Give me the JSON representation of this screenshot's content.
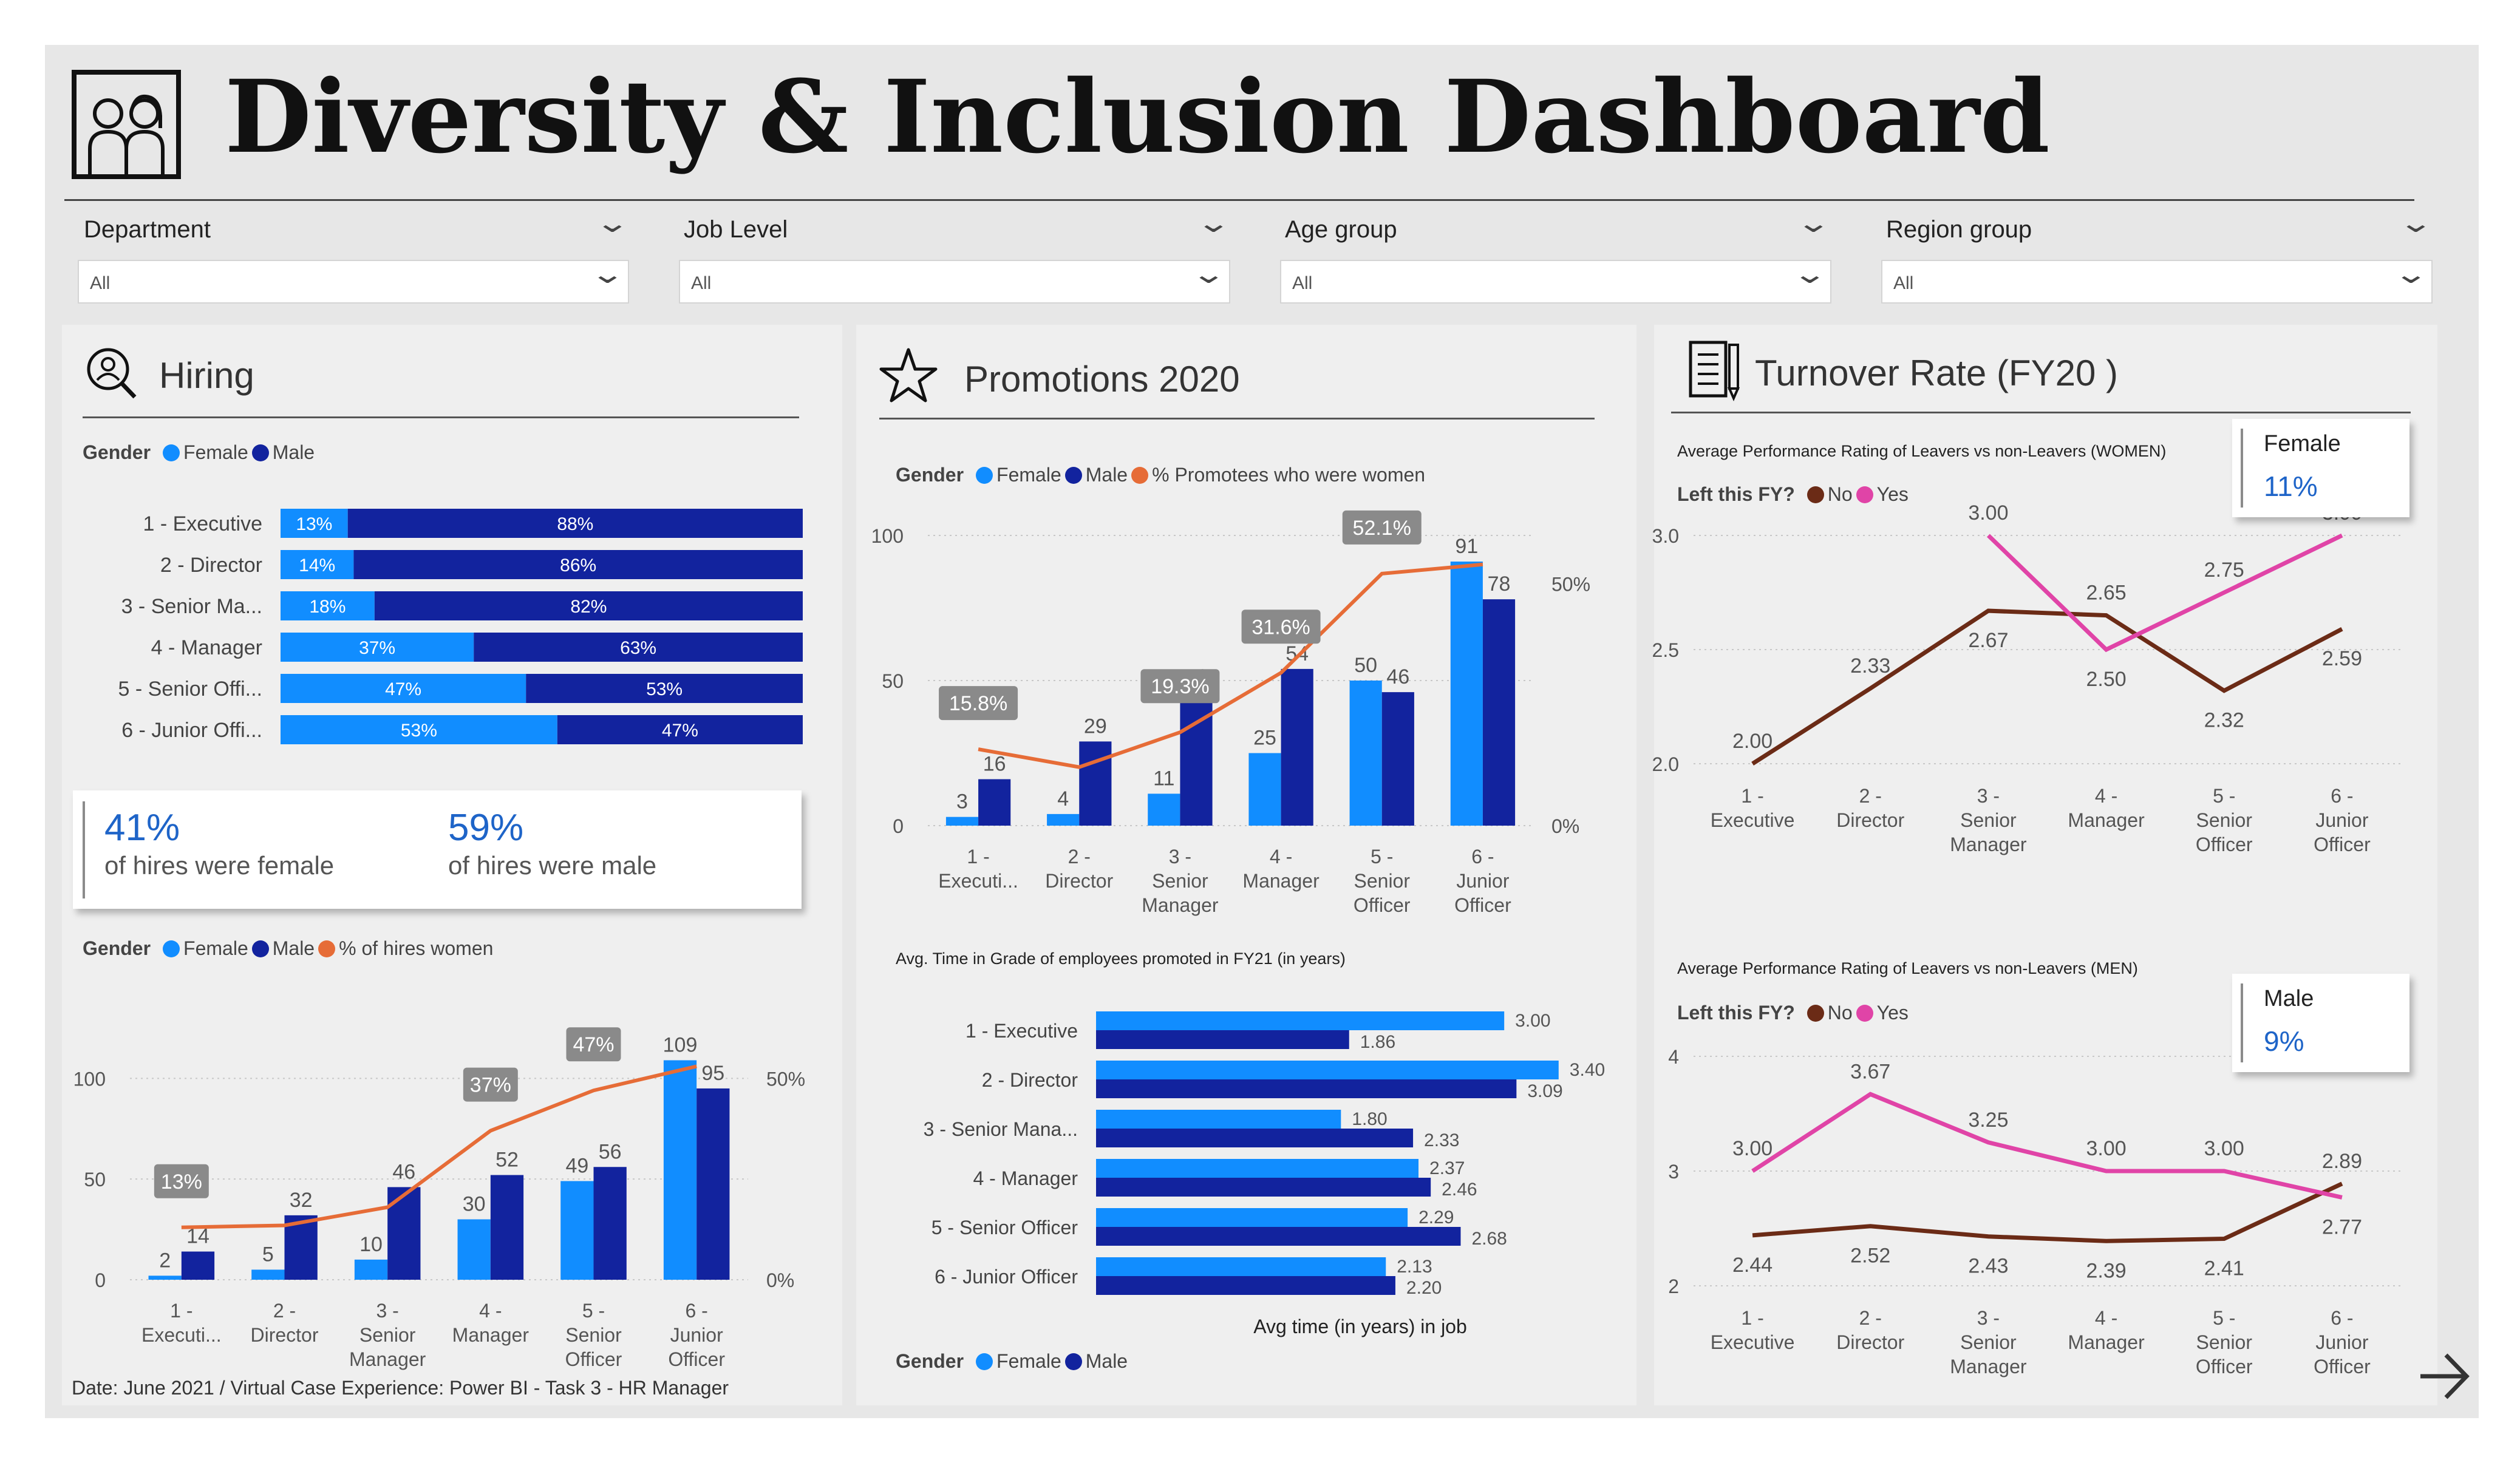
{
  "title": "Diversity & Inclusion Dashboard",
  "slicers": [
    {
      "label": "Department",
      "value": "All"
    },
    {
      "label": "Job Level",
      "value": "All"
    },
    {
      "label": "Age group",
      "value": "All"
    },
    {
      "label": "Region group",
      "value": "All"
    }
  ],
  "colors": {
    "female": "#118dff",
    "male": "#12239e",
    "pct_line": "#e66c37",
    "leavers_no": "#6b2b16",
    "leavers_yes": "#e044a7",
    "card_value": "#1e64c8"
  },
  "hiring": {
    "title": "Hiring",
    "legend1": {
      "label": "Gender",
      "female": "Female",
      "male": "Male"
    },
    "card": {
      "female_value": "41%",
      "female_text": "of hires were female",
      "male_value": "59%",
      "male_text": "of hires were male"
    },
    "legend2": {
      "label": "Gender",
      "female": "Female",
      "male": "Male",
      "line": "% of hires women"
    },
    "footer": "Date: June 2021 / Virtual Case Experience: Power BI - Task 3 - HR Manager"
  },
  "promotions": {
    "title": "Promotions 2020",
    "legend1": {
      "label": "Gender",
      "female": "Female",
      "male": "Male",
      "line": "% Promotees who were women"
    },
    "time_title": "Avg. Time in Grade of employees promoted in FY21 (in years)",
    "time_axis": "Avg time (in years) in job",
    "legend2": {
      "label": "Gender",
      "female": "Female",
      "male": "Male"
    }
  },
  "turnover": {
    "title": "Turnover Rate (FY20 )",
    "women_title": "Average Performance Rating of Leavers vs non-Leavers (WOMEN)",
    "men_title": "Average Performance Rating of Leavers vs non-Leavers (MEN)",
    "legend": {
      "label": "Left this FY?",
      "no": "No",
      "yes": "Yes"
    },
    "female_card": {
      "label": "Female",
      "value": "11%"
    },
    "male_card": {
      "label": "Male",
      "value": "9%"
    }
  },
  "chart_data": [
    {
      "id": "hiring_share",
      "type": "bar",
      "categories": [
        "1 - Executive",
        "2 - Director",
        "3 - Senior Ma...",
        "4 - Manager",
        "5 - Senior Offi...",
        "6 - Junior Offi..."
      ],
      "series": [
        {
          "name": "Female",
          "values": [
            13,
            14,
            18,
            37,
            47,
            53
          ],
          "labels": [
            "13%",
            "14%",
            "18%",
            "37%",
            "47%",
            "53%"
          ]
        },
        {
          "name": "Male",
          "values": [
            88,
            86,
            82,
            63,
            53,
            47
          ],
          "labels": [
            "88%",
            "86%",
            "82%",
            "63%",
            "53%",
            "47%"
          ]
        }
      ]
    },
    {
      "id": "hiring_counts",
      "type": "bar",
      "categories": [
        "1 - Executi...",
        "2 - Director",
        "3 - Senior Manager",
        "4 - Manager",
        "5 - Senior Officer",
        "6 - Junior Officer"
      ],
      "series": [
        {
          "name": "Female",
          "values": [
            2,
            5,
            10,
            30,
            49,
            109
          ]
        },
        {
          "name": "Male",
          "values": [
            14,
            32,
            46,
            52,
            56,
            95
          ]
        },
        {
          "name": "% of hires women",
          "type": "line",
          "values": [
            13,
            13.5,
            18,
            37,
            47,
            53
          ]
        }
      ],
      "pct_labels": [
        "13%",
        "37%",
        "47%"
      ],
      "pct_label_index": [
        0,
        3,
        4
      ],
      "yticks": [
        "100",
        "50",
        "0"
      ],
      "y2ticks": [
        "50%",
        "0%"
      ],
      "ylim": [
        0,
        120
      ],
      "y2lim": [
        0,
        60
      ]
    },
    {
      "id": "promotions",
      "type": "bar",
      "categories": [
        "1 - Executi...",
        "2 - Director",
        "3 - Senior Manager",
        "4 - Manager",
        "5 - Senior Officer",
        "6 - Junior Officer"
      ],
      "series": [
        {
          "name": "Female",
          "values": [
            3,
            4,
            11,
            25,
            50,
            91
          ]
        },
        {
          "name": "Male",
          "values": [
            16,
            29,
            46,
            54,
            46,
            78
          ]
        },
        {
          "name": "% Promotees who were women",
          "type": "line",
          "values": [
            15.8,
            12.1,
            19.3,
            31.6,
            52.1,
            54
          ]
        }
      ],
      "pct_labels": [
        "15.8%",
        "19.3%",
        "31.6%",
        "52.1%"
      ],
      "pct_label_index": [
        0,
        2,
        3,
        4
      ],
      "yticks": [
        "100",
        "50",
        "0"
      ],
      "y2ticks": [
        "50%",
        "0%"
      ],
      "ylim": [
        0,
        100
      ],
      "y2lim": [
        0,
        60
      ]
    },
    {
      "id": "time_in_grade",
      "type": "bar",
      "categories": [
        "1 - Executive",
        "2 - Director",
        "3 - Senior Mana...",
        "4 - Manager",
        "5 - Senior Officer",
        "6 - Junior Officer"
      ],
      "series": [
        {
          "name": "Female",
          "values": [
            3.0,
            3.4,
            1.8,
            2.37,
            2.29,
            2.13
          ]
        },
        {
          "name": "Male",
          "values": [
            1.86,
            3.09,
            2.33,
            2.46,
            2.68,
            2.2
          ]
        }
      ],
      "xlim": [
        0,
        3.45
      ]
    },
    {
      "id": "perf_women",
      "type": "line",
      "categories": [
        "1 - Executive",
        "2 - Director",
        "3 - Senior Manager",
        "4 - Manager",
        "5 - Senior Officer",
        "6 - Junior Officer"
      ],
      "series": [
        {
          "name": "No",
          "values": [
            2.0,
            2.33,
            2.67,
            2.65,
            2.32,
            2.59
          ]
        },
        {
          "name": "Yes",
          "values": [
            null,
            null,
            3.0,
            2.5,
            2.75,
            3.0
          ]
        }
      ],
      "yticks": [
        "3.0",
        "2.5",
        "2.0"
      ],
      "ylim": [
        2.0,
        3.0
      ]
    },
    {
      "id": "perf_men",
      "type": "line",
      "categories": [
        "1 - Executive",
        "2 - Director",
        "3 - Senior Manager",
        "4 - Manager",
        "5 - Senior Officer",
        "6 - Junior Officer"
      ],
      "series": [
        {
          "name": "No",
          "values": [
            2.44,
            2.52,
            2.43,
            2.39,
            2.41,
            2.89
          ]
        },
        {
          "name": "Yes",
          "values": [
            3.0,
            3.67,
            3.25,
            3.0,
            3.0,
            2.77
          ]
        }
      ],
      "yticks": [
        "4",
        "3",
        "2"
      ],
      "ylim": [
        2,
        4
      ]
    }
  ]
}
